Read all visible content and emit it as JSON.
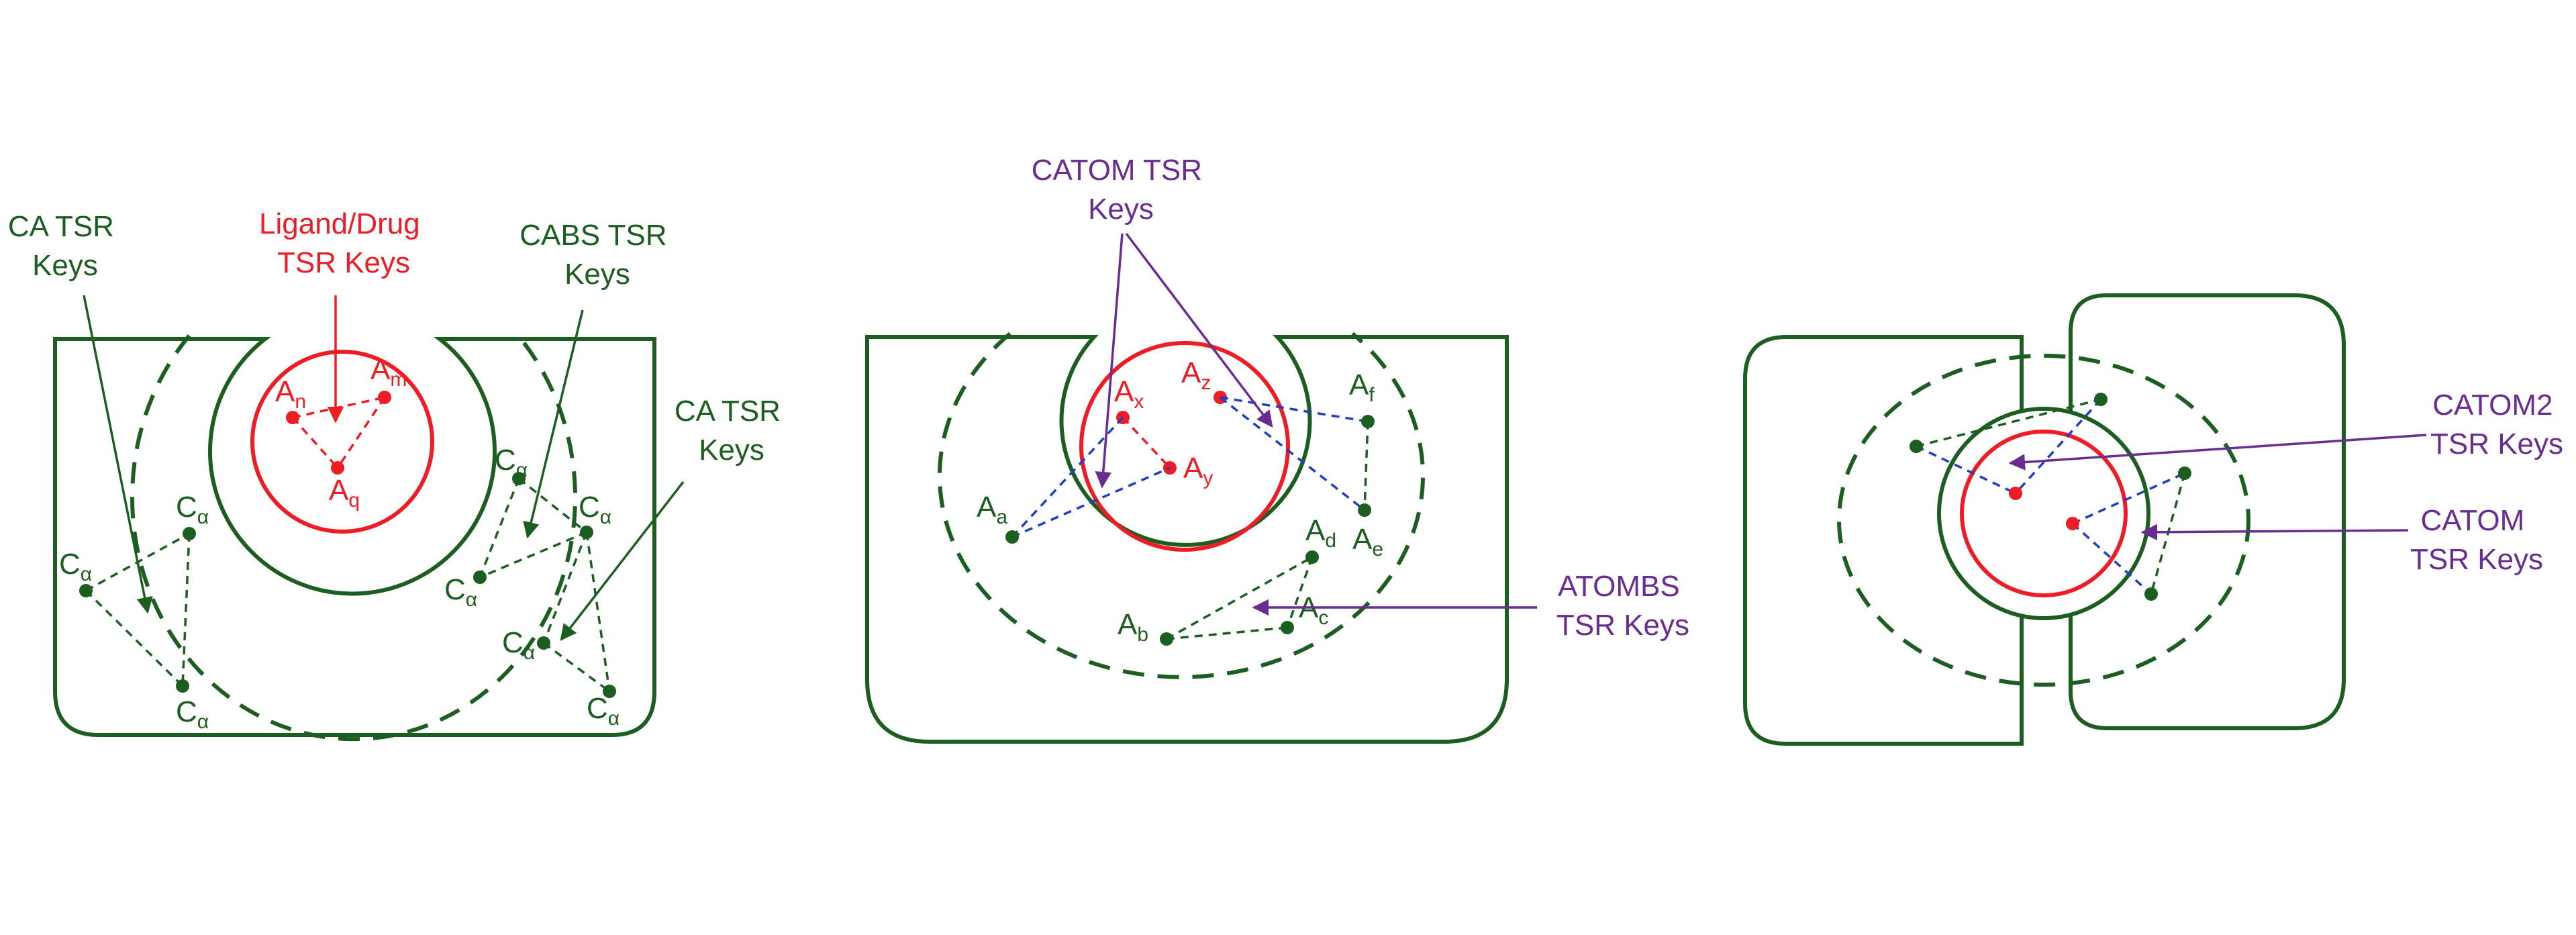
{
  "colors": {
    "green": "#1b5e20",
    "red": "#ee1c25",
    "purple": "#6a2c91",
    "blue": "#1f3fbf"
  },
  "panel1": {
    "label_ca_left": [
      "CA TSR",
      "Keys"
    ],
    "label_ligand": [
      "Ligand/Drug",
      "TSR Keys"
    ],
    "label_cabs": [
      "CABS TSR",
      "Keys"
    ],
    "label_ca_right": [
      "CA TSR",
      "Keys"
    ],
    "atom_base": "A",
    "ca_base": "C",
    "ca_sub": "α",
    "ligand_atoms": [
      "n",
      "m",
      "q"
    ]
  },
  "panel2": {
    "label_catom": [
      "CATOM TSR",
      "Keys"
    ],
    "label_atombs": [
      "ATOMBS",
      "TSR Keys"
    ],
    "atom_base": "A",
    "ligand_atoms": [
      "x",
      "z",
      "y"
    ],
    "protein_atoms": [
      "a",
      "f",
      "d",
      "e",
      "b",
      "c"
    ]
  },
  "panel3": {
    "label_catom2": [
      "CATOM2",
      "TSR Keys"
    ],
    "label_catom": [
      "CATOM",
      "TSR Keys"
    ]
  }
}
